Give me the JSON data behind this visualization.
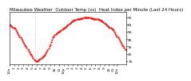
{
  "title": "Milwaukee Weather  Outdoor Temp (vs)  Heat Index per Minute (Last 24 Hours)",
  "line_color": "#ff0000",
  "bg_color": "#ffffff",
  "plot_bg_color": "#ffffff",
  "grid_color": "#aaaaaa",
  "y_ticks": [
    15,
    25,
    35,
    45,
    55,
    65,
    75
  ],
  "ylim": [
    10,
    82
  ],
  "temp_data": [
    65,
    64,
    63,
    62,
    61,
    60,
    59,
    57,
    55,
    53,
    51,
    49,
    47,
    45,
    43,
    41,
    39,
    37,
    35,
    33,
    31,
    29,
    27,
    25,
    23,
    21,
    19,
    17,
    16,
    15,
    15,
    15,
    16,
    17,
    18,
    19,
    20,
    21,
    22,
    24,
    26,
    28,
    30,
    32,
    35,
    38,
    41,
    44,
    47,
    49,
    51,
    52,
    53,
    54,
    55,
    55,
    56,
    57,
    58,
    59,
    60,
    61,
    62,
    63,
    64,
    65,
    66,
    67,
    68,
    69,
    70,
    70,
    71,
    71,
    72,
    72,
    73,
    73,
    73,
    74,
    74,
    74,
    75,
    75,
    75,
    75,
    75,
    75,
    75,
    75,
    74,
    74,
    74,
    73,
    73,
    73,
    72,
    72,
    72,
    71,
    71,
    70,
    70,
    69,
    68,
    67,
    66,
    65,
    64,
    63,
    62,
    61,
    60,
    59,
    58,
    57,
    55,
    53,
    51,
    49,
    47,
    45,
    43,
    41,
    39,
    37,
    35,
    33,
    31,
    30
  ],
  "x_tick_positions": [
    0,
    5,
    10,
    15,
    20,
    25,
    30,
    35,
    40,
    45,
    50,
    55,
    60,
    65,
    70,
    75,
    80,
    85,
    90,
    95,
    100,
    105,
    110,
    115,
    119
  ],
  "x_tick_labels": [
    "12a",
    "1",
    "2",
    "3",
    "4",
    "5",
    "6",
    "7",
    "8",
    "9",
    "10",
    "11",
    "12p",
    "1",
    "2",
    "3",
    "4",
    "5",
    "6",
    "7",
    "8",
    "9",
    "10",
    "11",
    "12a"
  ],
  "vgrid_positions": [
    28
  ],
  "title_fontsize": 4.0,
  "tick_fontsize": 3.2,
  "line_width": 0.7,
  "marker": ".",
  "marker_size": 1.2
}
